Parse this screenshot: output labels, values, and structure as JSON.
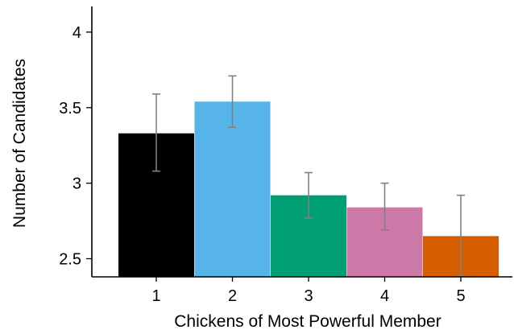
{
  "chart_data": {
    "type": "bar",
    "title": "",
    "xlabel": "Chickens of Most Powerful Member",
    "ylabel": "Number of Candidates",
    "categories": [
      "1",
      "2",
      "3",
      "4",
      "5"
    ],
    "values": [
      3.33,
      3.54,
      2.92,
      2.84,
      2.65
    ],
    "error_low": [
      3.08,
      3.37,
      2.77,
      2.69,
      2.39
    ],
    "error_high": [
      3.59,
      3.71,
      3.07,
      3.0,
      2.92
    ],
    "colors": [
      "#000000",
      "#56B4E9",
      "#009E73",
      "#CC79A7",
      "#D55E00"
    ],
    "error_color": "#808080",
    "ylim": [
      2.38,
      4.17
    ],
    "yticks": [
      2.5,
      3,
      3.5,
      4
    ],
    "ytick_labels": [
      "2.5",
      "3",
      "3.5",
      "4"
    ],
    "grid": false,
    "legend": "none"
  }
}
